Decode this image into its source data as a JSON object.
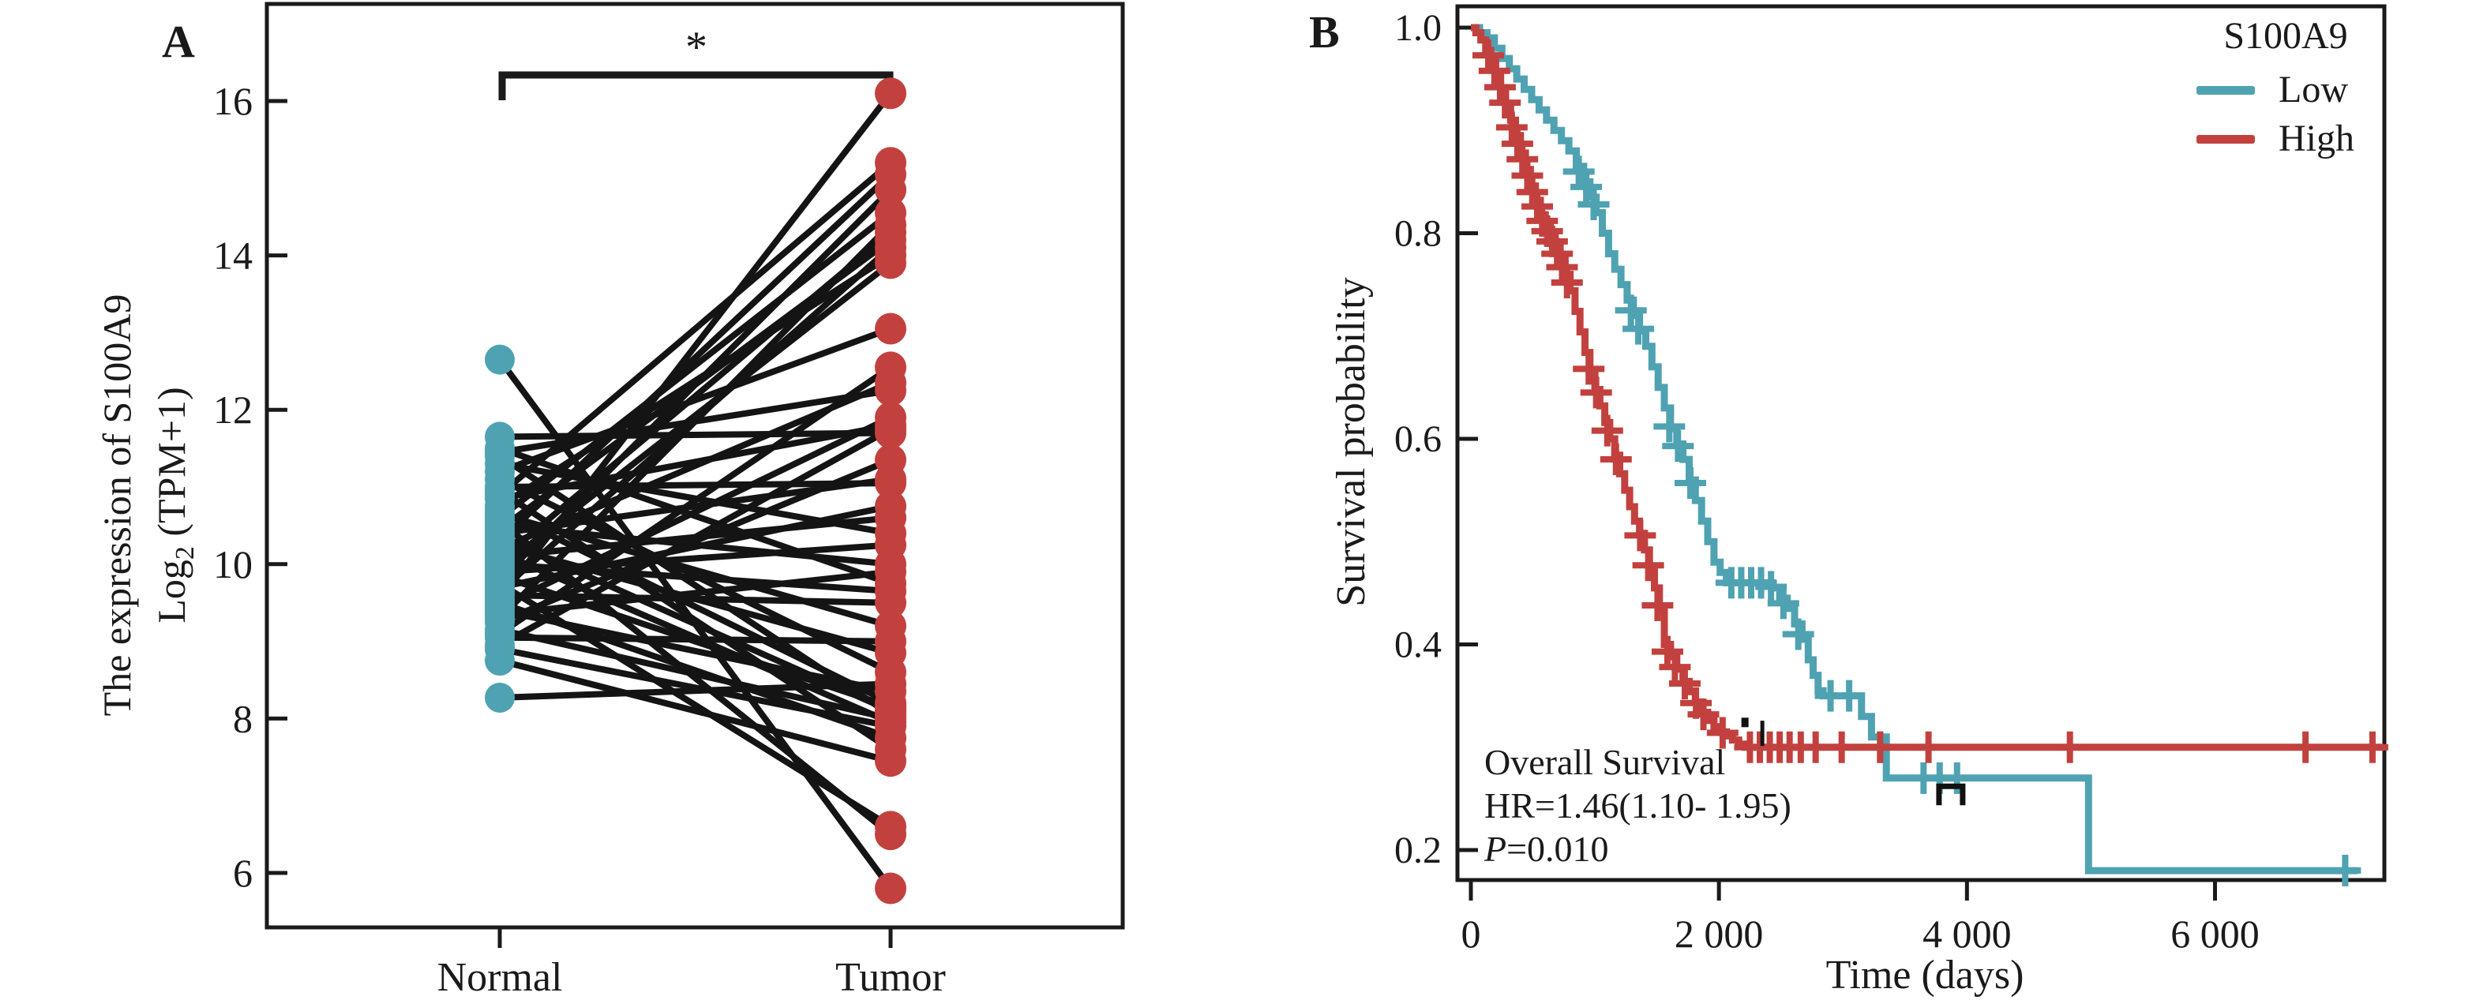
{
  "figure": {
    "background": "#ffffff",
    "text_color": "#1a1a1a"
  },
  "chart_data": [
    {
      "type": "scatter",
      "subtype": "paired-dot-line-plot",
      "panel_label": "A",
      "x_categories": [
        "Normal",
        "Tumor"
      ],
      "y_axis": {
        "label_line1": "The expression of S100A9",
        "label_line2_pre": "Log",
        "label_line2_sub": "2",
        "label_line2_post": " (TPM+1)",
        "tick_values": [
          16,
          14,
          12,
          10,
          8,
          6
        ],
        "tick_labels": [
          "16",
          "14",
          "12",
          "10",
          "8",
          "6"
        ],
        "range": [
          5.3,
          17.25
        ]
      },
      "significance_marker": "*",
      "colors": {
        "normal_dot": "#4FA2B2",
        "tumor_dot": "#C2413E",
        "pair_line": "#141414",
        "axis": "#1a1a1a"
      },
      "pairs_normal_tumor": [
        [
          9.55,
          16.1
        ],
        [
          10.9,
          15.2
        ],
        [
          10.3,
          15.05
        ],
        [
          9.8,
          14.85
        ],
        [
          10.6,
          14.55
        ],
        [
          9.3,
          14.4
        ],
        [
          10.05,
          14.3
        ],
        [
          10.45,
          14.2
        ],
        [
          9.65,
          14.1
        ],
        [
          10.75,
          14.0
        ],
        [
          9.95,
          13.9
        ],
        [
          11.2,
          13.05
        ],
        [
          9.1,
          12.55
        ],
        [
          10.2,
          12.35
        ],
        [
          11.45,
          12.25
        ],
        [
          9.45,
          11.9
        ],
        [
          10.85,
          11.8
        ],
        [
          8.95,
          11.75
        ],
        [
          11.65,
          11.7
        ],
        [
          9.25,
          11.35
        ],
        [
          10.4,
          11.1
        ],
        [
          11.0,
          11.05
        ],
        [
          9.7,
          10.75
        ],
        [
          10.1,
          10.6
        ],
        [
          11.3,
          10.4
        ],
        [
          9.9,
          10.25
        ],
        [
          10.5,
          10.0
        ],
        [
          9.35,
          9.9
        ],
        [
          11.5,
          9.75
        ],
        [
          10.0,
          9.65
        ],
        [
          9.6,
          9.5
        ],
        [
          10.65,
          9.2
        ],
        [
          9.05,
          9.0
        ],
        [
          10.25,
          8.85
        ],
        [
          11.1,
          8.6
        ],
        [
          8.27,
          8.45
        ],
        [
          9.4,
          8.35
        ],
        [
          10.7,
          8.2
        ],
        [
          9.85,
          8.15
        ],
        [
          10.35,
          8.1
        ],
        [
          11.4,
          8.05
        ],
        [
          9.15,
          8.0
        ],
        [
          10.15,
          7.95
        ],
        [
          8.9,
          7.9
        ],
        [
          9.5,
          7.75
        ],
        [
          10.95,
          7.6
        ],
        [
          8.75,
          7.45
        ],
        [
          9.75,
          6.6
        ],
        [
          10.55,
          6.5
        ],
        [
          12.65,
          5.8
        ]
      ]
    },
    {
      "type": "line",
      "subtype": "kaplan-meier",
      "panel_label": "B",
      "x_axis": {
        "label": "Time (days)",
        "tick_values": [
          0,
          2000,
          4000,
          6000
        ],
        "tick_labels": [
          "0",
          "2 000",
          "4 000",
          "6 000"
        ],
        "range": [
          -110,
          7370
        ]
      },
      "y_axis": {
        "label": "Survival probability",
        "tick_values": [
          1.0,
          0.8,
          0.6,
          0.4,
          0.2
        ],
        "tick_labels": [
          "1.0",
          "0.8",
          "0.6",
          "0.4",
          "0.2"
        ],
        "range": [
          0.171,
          1.021
        ]
      },
      "legend": {
        "title": "S100A9",
        "entries": [
          {
            "name": "Low",
            "color": "#4FA2B2"
          },
          {
            "name": "High",
            "color": "#C2413E"
          }
        ]
      },
      "annotation": {
        "line1": "Overall Survival",
        "line2": "HR=1.46(1.10- 1.95)",
        "line3_italic": "P",
        "line3_rest": "=0.010"
      },
      "series": [
        {
          "name": "Low",
          "color": "#4FA2B2",
          "steps": [
            [
              0,
              1.0
            ],
            [
              70,
              0.995
            ],
            [
              130,
              0.99
            ],
            [
              190,
              0.98
            ],
            [
              250,
              0.97
            ],
            [
              310,
              0.96
            ],
            [
              370,
              0.95
            ],
            [
              430,
              0.94
            ],
            [
              490,
              0.93
            ],
            [
              550,
              0.92
            ],
            [
              610,
              0.91
            ],
            [
              670,
              0.9
            ],
            [
              730,
              0.89
            ],
            [
              790,
              0.88
            ],
            [
              850,
              0.865
            ],
            [
              910,
              0.85
            ],
            [
              960,
              0.835
            ],
            [
              1010,
              0.82
            ],
            [
              1060,
              0.8
            ],
            [
              1110,
              0.78
            ],
            [
              1160,
              0.765
            ],
            [
              1210,
              0.75
            ],
            [
              1260,
              0.735
            ],
            [
              1310,
              0.72
            ],
            [
              1360,
              0.705
            ],
            [
              1410,
              0.69
            ],
            [
              1460,
              0.67
            ],
            [
              1510,
              0.65
            ],
            [
              1560,
              0.63
            ],
            [
              1610,
              0.61
            ],
            [
              1660,
              0.595
            ],
            [
              1710,
              0.58
            ],
            [
              1760,
              0.56
            ],
            [
              1810,
              0.54
            ],
            [
              1860,
              0.52
            ],
            [
              1910,
              0.5
            ],
            [
              1960,
              0.48
            ],
            [
              2010,
              0.47
            ],
            [
              2060,
              0.46
            ],
            [
              2430,
              0.455
            ],
            [
              2490,
              0.445
            ],
            [
              2550,
              0.435
            ],
            [
              2610,
              0.42
            ],
            [
              2670,
              0.405
            ],
            [
              2720,
              0.385
            ],
            [
              2760,
              0.37
            ],
            [
              2800,
              0.355
            ],
            [
              2840,
              0.35
            ],
            [
              3150,
              0.33
            ],
            [
              3230,
              0.31
            ],
            [
              3350,
              0.27
            ],
            [
              4980,
              0.18
            ],
            [
              7150,
              0.18
            ]
          ],
          "censors": [
            [
              870,
              0.86
            ],
            [
              930,
              0.845
            ],
            [
              990,
              0.828
            ],
            [
              1290,
              0.725
            ],
            [
              1350,
              0.707
            ],
            [
              1600,
              0.612
            ],
            [
              1670,
              0.593
            ],
            [
              1770,
              0.557
            ],
            [
              2100,
              0.46
            ],
            [
              2180,
              0.46
            ],
            [
              2260,
              0.46
            ],
            [
              2340,
              0.46
            ],
            [
              2420,
              0.456
            ],
            [
              2520,
              0.44
            ],
            [
              2640,
              0.41
            ],
            [
              2900,
              0.35
            ],
            [
              3050,
              0.35
            ],
            [
              3300,
              0.3
            ],
            [
              3650,
              0.27
            ],
            [
              3780,
              0.27
            ],
            [
              3920,
              0.27
            ],
            [
              7050,
              0.18
            ]
          ]
        },
        {
          "name": "High",
          "color": "#C2413E",
          "steps": [
            [
              0,
              1.0
            ],
            [
              40,
              0.995
            ],
            [
              80,
              0.988
            ],
            [
              120,
              0.978
            ],
            [
              160,
              0.968
            ],
            [
              200,
              0.955
            ],
            [
              240,
              0.94
            ],
            [
              280,
              0.925
            ],
            [
              320,
              0.91
            ],
            [
              360,
              0.895
            ],
            [
              400,
              0.878
            ],
            [
              440,
              0.862
            ],
            [
              480,
              0.846
            ],
            [
              520,
              0.832
            ],
            [
              560,
              0.818
            ],
            [
              600,
              0.806
            ],
            [
              640,
              0.796
            ],
            [
              680,
              0.786
            ],
            [
              720,
              0.774
            ],
            [
              760,
              0.76
            ],
            [
              800,
              0.744
            ],
            [
              840,
              0.724
            ],
            [
              880,
              0.704
            ],
            [
              920,
              0.684
            ],
            [
              960,
              0.664
            ],
            [
              1000,
              0.648
            ],
            [
              1040,
              0.632
            ],
            [
              1080,
              0.616
            ],
            [
              1120,
              0.6
            ],
            [
              1160,
              0.584
            ],
            [
              1200,
              0.566
            ],
            [
              1240,
              0.55
            ],
            [
              1280,
              0.534
            ],
            [
              1320,
              0.52
            ],
            [
              1360,
              0.508
            ],
            [
              1400,
              0.492
            ],
            [
              1440,
              0.474
            ],
            [
              1480,
              0.455
            ],
            [
              1520,
              0.432
            ],
            [
              1560,
              0.4
            ],
            [
              1610,
              0.388
            ],
            [
              1660,
              0.376
            ],
            [
              1710,
              0.364
            ],
            [
              1760,
              0.354
            ],
            [
              1810,
              0.344
            ],
            [
              1860,
              0.334
            ],
            [
              1910,
              0.326
            ],
            [
              1960,
              0.32
            ],
            [
              2010,
              0.315
            ],
            [
              2060,
              0.311
            ],
            [
              2110,
              0.307
            ],
            [
              2160,
              0.303
            ],
            [
              2210,
              0.3
            ],
            [
              7360,
              0.3
            ]
          ],
          "censors": [
            [
              140,
              0.973
            ],
            [
              190,
              0.958
            ],
            [
              235,
              0.942
            ],
            [
              275,
              0.927
            ],
            [
              330,
              0.903
            ],
            [
              375,
              0.887
            ],
            [
              415,
              0.872
            ],
            [
              455,
              0.856
            ],
            [
              495,
              0.84
            ],
            [
              535,
              0.826
            ],
            [
              575,
              0.812
            ],
            [
              615,
              0.802
            ],
            [
              655,
              0.792
            ],
            [
              695,
              0.78
            ],
            [
              735,
              0.767
            ],
            [
              775,
              0.752
            ],
            [
              950,
              0.668
            ],
            [
              1010,
              0.645
            ],
            [
              1100,
              0.608
            ],
            [
              1170,
              0.58
            ],
            [
              1365,
              0.506
            ],
            [
              1430,
              0.477
            ],
            [
              1505,
              0.438
            ],
            [
              1585,
              0.393
            ],
            [
              1645,
              0.378
            ],
            [
              1725,
              0.362
            ],
            [
              1815,
              0.343
            ],
            [
              1875,
              0.332
            ],
            [
              2030,
              0.314
            ],
            [
              2250,
              0.3
            ],
            [
              2330,
              0.3
            ],
            [
              2410,
              0.3
            ],
            [
              2490,
              0.3
            ],
            [
              2570,
              0.3
            ],
            [
              2660,
              0.3
            ],
            [
              2780,
              0.3
            ],
            [
              2990,
              0.3
            ],
            [
              3300,
              0.3
            ],
            [
              3690,
              0.3
            ],
            [
              4830,
              0.3
            ],
            [
              6730,
              0.3
            ],
            [
              7270,
              0.3
            ]
          ]
        }
      ],
      "stray_marks": [
        {
          "t": 2210,
          "s": 0.318,
          "kind": "dash"
        },
        {
          "t": 2350,
          "s": 0.312,
          "kind": "vbar"
        },
        {
          "t": 3870,
          "s": 0.262,
          "kind": "cap"
        }
      ]
    }
  ]
}
